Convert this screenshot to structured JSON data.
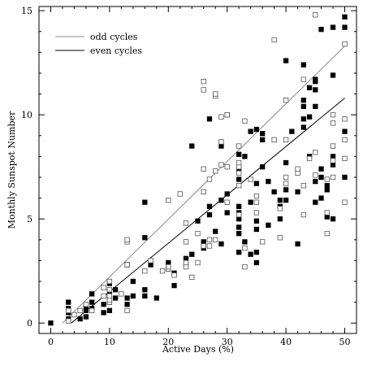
{
  "chart_data": {
    "type": "scatter",
    "xlabel": "Active Days (%)",
    "ylabel": "Monthly Sunspot Number",
    "xlim": [
      -2,
      52
    ],
    "ylim": [
      -0.5,
      15.2
    ],
    "x_ticks": [
      0,
      10,
      20,
      30,
      40,
      50
    ],
    "y_ticks": [
      0,
      5,
      10,
      15
    ],
    "x_tick_labels": [
      "0",
      "10",
      "20",
      "30",
      "40",
      "50"
    ],
    "y_tick_labels": [
      "0",
      "5",
      "10",
      "15"
    ],
    "grid": false,
    "legend_position": "top-left",
    "legend": [
      {
        "label": "odd cycles",
        "color": "#888888"
      },
      {
        "label": "even cycles",
        "color": "#000000"
      }
    ],
    "series": [
      {
        "marker": "filled-square",
        "points": [
          [
            0,
            0
          ],
          [
            3,
            0.2
          ],
          [
            3,
            0.5
          ],
          [
            3,
            0.7
          ],
          [
            3,
            1.0
          ],
          [
            5,
            0.2
          ],
          [
            6,
            0.3
          ],
          [
            6,
            0.6
          ],
          [
            6,
            0.8
          ],
          [
            7,
            0.7
          ],
          [
            7,
            1.0
          ],
          [
            7,
            1.4
          ],
          [
            9,
            0.5
          ],
          [
            9,
            0.9
          ],
          [
            10,
            1.0
          ],
          [
            10,
            1.2
          ],
          [
            10,
            1.5
          ],
          [
            10,
            1.9
          ],
          [
            10,
            0.6
          ],
          [
            11,
            1.6
          ],
          [
            11,
            1.2
          ],
          [
            13,
            0.9
          ],
          [
            13,
            2.8
          ],
          [
            13,
            1.2
          ],
          [
            14,
            2.0
          ],
          [
            14,
            1.3
          ],
          [
            16,
            4.1
          ],
          [
            16,
            5.8
          ],
          [
            16,
            1.3
          ],
          [
            16,
            1.6
          ],
          [
            17,
            2.8
          ],
          [
            18,
            1.2
          ],
          [
            20,
            2.9
          ],
          [
            20,
            2.6
          ],
          [
            21,
            2.4
          ],
          [
            21,
            1.8
          ],
          [
            23,
            3.1
          ],
          [
            23,
            2.8
          ],
          [
            24,
            3.3
          ],
          [
            24,
            8.5
          ],
          [
            25,
            4.9
          ],
          [
            26,
            3.9
          ],
          [
            26,
            3.8
          ],
          [
            26,
            3.6
          ],
          [
            27,
            9.8
          ],
          [
            27,
            5.6
          ],
          [
            27,
            5.2
          ],
          [
            28,
            4.4
          ],
          [
            29,
            5.9
          ],
          [
            29,
            8.5
          ],
          [
            29,
            3.8
          ],
          [
            30,
            6.2
          ],
          [
            30,
            5.3
          ],
          [
            30,
            10.0
          ],
          [
            32,
            3.4
          ],
          [
            32,
            4.6
          ],
          [
            32,
            5.0
          ],
          [
            32,
            5.3
          ],
          [
            32,
            5.6
          ],
          [
            32,
            4.3
          ],
          [
            32,
            6.9
          ],
          [
            32,
            7.4
          ],
          [
            32,
            8.1
          ],
          [
            33,
            8.0
          ],
          [
            33,
            3.9
          ],
          [
            34,
            9.2
          ],
          [
            34,
            3.3
          ],
          [
            34,
            5.8
          ],
          [
            35,
            9.3
          ],
          [
            35,
            6.7
          ],
          [
            35,
            4.9
          ],
          [
            35,
            4.5
          ],
          [
            35,
            2.9
          ],
          [
            35,
            3.4
          ],
          [
            36,
            9.1
          ],
          [
            36,
            8.8
          ],
          [
            36,
            7.5
          ],
          [
            37,
            6.8
          ],
          [
            37,
            4.7
          ],
          [
            38,
            6.3
          ],
          [
            39,
            5.6
          ],
          [
            39,
            5.0
          ],
          [
            39,
            5.9
          ],
          [
            40,
            5.9
          ],
          [
            40,
            6.4
          ],
          [
            40,
            7.7
          ],
          [
            40,
            12.6
          ],
          [
            41,
            9.2
          ],
          [
            42,
            6.3
          ],
          [
            42,
            3.8
          ],
          [
            43,
            12.4
          ],
          [
            43,
            10.7
          ],
          [
            43,
            10.4
          ],
          [
            43,
            9.8
          ],
          [
            43,
            9.4
          ],
          [
            44,
            11.3
          ],
          [
            44,
            9.9
          ],
          [
            44,
            8.0
          ],
          [
            45,
            11.6
          ],
          [
            45,
            11.7
          ],
          [
            45,
            11.2
          ],
          [
            45,
            10.4
          ],
          [
            45,
            6.8
          ],
          [
            45,
            5.8
          ],
          [
            46,
            14.1
          ],
          [
            46,
            6.0
          ],
          [
            46,
            7.0
          ],
          [
            46,
            7.4
          ],
          [
            47,
            6.6
          ],
          [
            47,
            6.4
          ],
          [
            47,
            5.1
          ],
          [
            48,
            14.2
          ],
          [
            48,
            11.9
          ],
          [
            48,
            8.0
          ],
          [
            48,
            7.6
          ],
          [
            48,
            5.0
          ],
          [
            50,
            14.7
          ],
          [
            50,
            14.2
          ],
          [
            50,
            9.2
          ],
          [
            50,
            7.0
          ]
        ]
      },
      {
        "marker": "open-square",
        "points": [
          [
            3,
            0.1
          ],
          [
            3,
            0.6
          ],
          [
            4,
            0.4
          ],
          [
            5,
            0.6
          ],
          [
            6,
            0.9
          ],
          [
            7,
            0.6
          ],
          [
            9,
            1.3
          ],
          [
            9,
            1.7
          ],
          [
            10,
            1.0
          ],
          [
            10,
            1.3
          ],
          [
            10,
            1.6
          ],
          [
            10,
            2.0
          ],
          [
            10,
            1.1
          ],
          [
            12,
            1.4
          ],
          [
            13,
            0.6
          ],
          [
            13,
            2.8
          ],
          [
            13,
            3.9
          ],
          [
            13,
            4.0
          ],
          [
            16,
            2.5
          ],
          [
            17,
            3.0
          ],
          [
            19,
            2.5
          ],
          [
            20,
            2.6
          ],
          [
            20,
            2.7
          ],
          [
            20,
            5.9
          ],
          [
            21,
            2.3
          ],
          [
            22,
            6.2
          ],
          [
            23,
            2.7
          ],
          [
            23,
            2.9
          ],
          [
            23,
            3.9
          ],
          [
            23,
            4.8
          ],
          [
            24,
            2.2
          ],
          [
            25,
            2.9
          ],
          [
            25,
            4.3
          ],
          [
            26,
            6.3
          ],
          [
            26,
            7.4
          ],
          [
            26,
            11.2
          ],
          [
            26,
            11.6
          ],
          [
            26,
            3.7
          ],
          [
            27,
            3.7
          ],
          [
            27,
            4.0
          ],
          [
            27,
            6.9
          ],
          [
            28,
            4.0
          ],
          [
            28,
            7.3
          ],
          [
            28,
            10.9
          ],
          [
            28,
            11.0
          ],
          [
            29,
            7.6
          ],
          [
            29,
            8.7
          ],
          [
            29,
            9.9
          ],
          [
            30,
            10.0
          ],
          [
            30,
            7.5
          ],
          [
            30,
            5.8
          ],
          [
            32,
            5.2
          ],
          [
            32,
            6.6
          ],
          [
            32,
            7.2
          ],
          [
            32,
            7.5
          ],
          [
            32,
            7.7
          ],
          [
            32,
            8.5
          ],
          [
            33,
            3.6
          ],
          [
            33,
            2.7
          ],
          [
            33,
            9.7
          ],
          [
            34,
            6.9
          ],
          [
            35,
            5.8
          ],
          [
            35,
            6.1
          ],
          [
            35,
            5.3
          ],
          [
            36,
            3.9
          ],
          [
            38,
            8.8
          ],
          [
            38,
            13.6
          ],
          [
            39,
            5.5
          ],
          [
            39,
            4.1
          ],
          [
            40,
            6.7
          ],
          [
            40,
            7.0
          ],
          [
            40,
            8.8
          ],
          [
            40,
            10.7
          ],
          [
            42,
            7.3
          ],
          [
            42,
            7.2
          ],
          [
            42,
            7.4
          ],
          [
            43,
            5.2
          ],
          [
            43,
            6.6
          ],
          [
            43,
            11.7
          ],
          [
            44,
            7.9
          ],
          [
            45,
            7.1
          ],
          [
            45,
            8.2
          ],
          [
            45,
            14.8
          ],
          [
            47,
            4.3
          ],
          [
            47,
            5.3
          ],
          [
            47,
            6.9
          ],
          [
            48,
            10.0
          ],
          [
            48,
            9.6
          ],
          [
            48,
            8.5
          ],
          [
            48,
            7.8
          ],
          [
            48,
            7.0
          ],
          [
            50,
            13.4
          ],
          [
            50,
            9.8
          ],
          [
            50,
            8.8
          ],
          [
            50,
            7.9
          ],
          [
            50,
            5.8
          ]
        ]
      }
    ],
    "fit_lines": [
      {
        "name": "odd cycles",
        "color": "#888888",
        "from": [
          2,
          0
        ],
        "to": [
          50,
          13.3
        ]
      },
      {
        "name": "even cycles",
        "color": "#000000",
        "from": [
          3.5,
          0
        ],
        "to": [
          50,
          10.8
        ]
      }
    ]
  }
}
